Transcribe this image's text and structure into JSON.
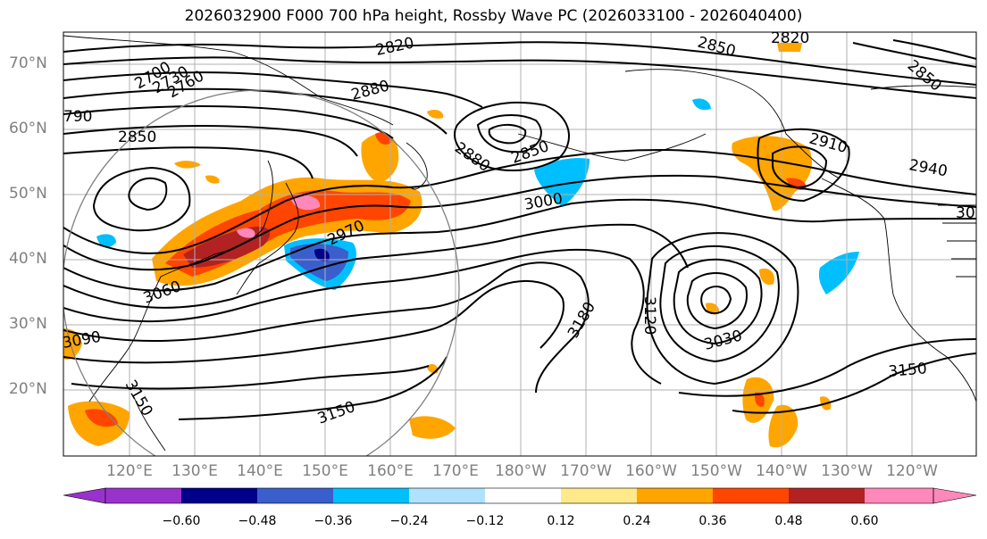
{
  "title": "2026032900 F000 700 hPa height, Rossby Wave PC (2026033100 - 2026040400)",
  "lat_labels": [
    "70°N",
    "60°N",
    "50°N",
    "40°N",
    "30°N",
    "20°N"
  ],
  "lon_labels": [
    "120°E",
    "130°E",
    "140°E",
    "150°E",
    "160°E",
    "170°E",
    "180°W",
    "170°W",
    "160°W",
    "150°W",
    "140°W",
    "130°W",
    "120°W"
  ],
  "contour_labels": [
    "2700",
    "2730",
    "2760",
    "790",
    "2820",
    "2850",
    "2880",
    "2850",
    "2880",
    "2850",
    "2820",
    "2850",
    "2910",
    "2940",
    "30",
    "2970",
    "3000",
    "3060",
    "3090",
    "3150",
    "3150",
    "3180",
    "3120",
    "3030",
    "3150"
  ],
  "colorbar": {
    "ticks": [
      "−0.60",
      "−0.48",
      "−0.36",
      "−0.24",
      "−0.12",
      "0.12",
      "0.24",
      "0.36",
      "0.48",
      "0.60"
    ],
    "colors": [
      "#9932cc",
      "#00008b",
      "#3a5fcd",
      "#00bfff",
      "#b0e2ff",
      "#ffffff",
      "#ffe98a",
      "#ffa500",
      "#ff4500",
      "#b22222",
      "#ff88bb"
    ]
  }
}
